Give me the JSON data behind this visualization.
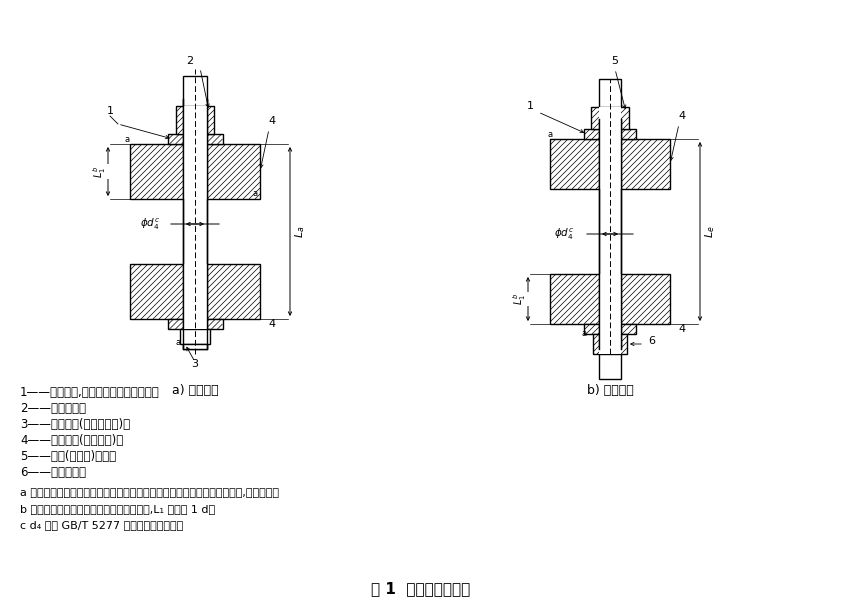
{
  "title": "图 1  夹具和试件装夹",
  "bg_color": "#ffffff",
  "label_a": "a) 螺母试件",
  "label_b": "b) 螺栓试件",
  "legend_lines": [
    "1——试验垫片,试验垫圈或者专用垫圈；",
    "2——螺母试件；",
    "3——试验螺栓(或试验螺钉)；",
    "4——试验装置(夹紧元件)；",
    "5——螺栓(或螺钉)试件；",
    "6——试验螺母。"
  ],
  "note_lines": [
    "a 应采用适当的方法固定试验垫片或试验垫圈和螺栓头部或螺母以防止转动,并应对中。",
    "b 在达到屈服夹紧力或极限夹紧力的情况下,L₁ 至少为 1 d。",
    "c d₄ 符合 GB/T 5277 精装配系列的规定。"
  ],
  "fig_w": 842,
  "fig_h": 614
}
